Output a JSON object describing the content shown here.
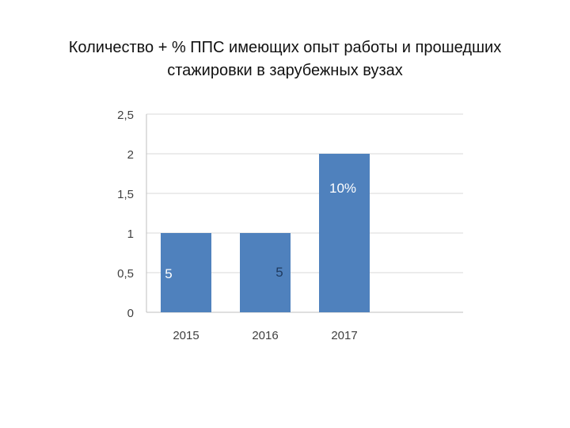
{
  "title": {
    "line1": "Количество + % ППС имеющих опыт работы и прошедших",
    "line2": "стажировки в зарубежных вузах"
  },
  "chart_data": {
    "type": "bar",
    "title": "Количество + % ППС имеющих опыт работы и прошедших стажировки в зарубежных вузах",
    "xlabel": "",
    "ylabel": "",
    "categories": [
      "2015",
      "2016",
      "2017"
    ],
    "values": [
      1,
      1,
      2
    ],
    "data_labels": [
      "5",
      "5",
      "10%"
    ],
    "ylim": [
      0,
      2.5
    ],
    "yticks": [
      "0",
      "0,5",
      "1",
      "1,5",
      "2",
      "2,5"
    ],
    "grid": true,
    "legend": "none",
    "colors": {
      "bar": "#4f81bd",
      "label_on_bar": "#ffffff",
      "label_off_bar": "#1f3a5f",
      "grid": "#d9d9d9",
      "axis_text": "#404040"
    }
  }
}
